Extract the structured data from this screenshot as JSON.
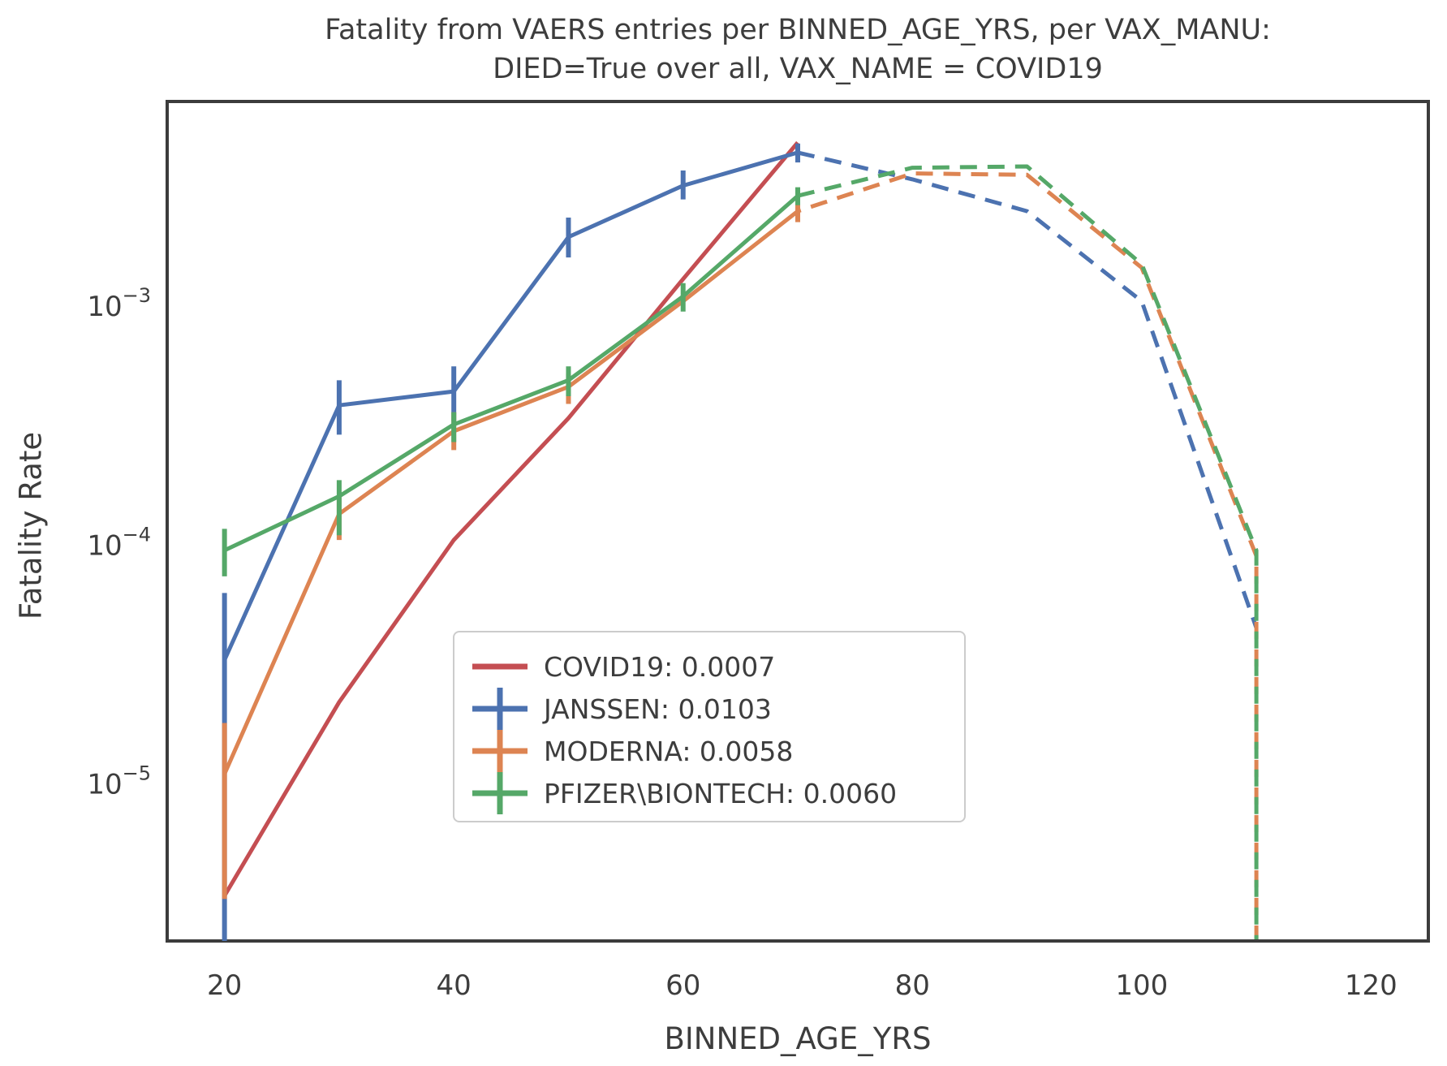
{
  "title": {
    "line1": "Fatality from VAERS entries per BINNED_AGE_YRS, per VAX_MANU:",
    "line2": "DIED=True over all, VAX_NAME = COVID19"
  },
  "axes": {
    "xlabel": "BINNED_AGE_YRS",
    "ylabel": "Fatality Rate",
    "x_ticks": [
      20,
      40,
      60,
      80,
      100,
      120
    ],
    "y_ticks": [
      {
        "base": "10",
        "exp": "−3",
        "value": 0.001
      },
      {
        "base": "10",
        "exp": "−4",
        "value": 0.0001
      },
      {
        "base": "10",
        "exp": "−5",
        "value": 1e-05
      }
    ]
  },
  "legend": {
    "items": [
      {
        "label": "COVID19: 0.0007",
        "color": "#c44e52",
        "has_bar": false
      },
      {
        "label": "JANSSEN: 0.0103",
        "color": "#4c72b0",
        "has_bar": true
      },
      {
        "label": "MODERNA: 0.0058",
        "color": "#dd8452",
        "has_bar": true
      },
      {
        "label": "PFIZER\\BIONTECH: 0.0060",
        "color": "#55a868",
        "has_bar": true
      }
    ]
  },
  "chart_data": {
    "type": "line",
    "yscale": "log",
    "title": "Fatality from VAERS entries per BINNED_AGE_YRS, per VAX_MANU: DIED=True over all, VAX_NAME = COVID19",
    "xlabel": "BINNED_AGE_YRS",
    "ylabel": "Fatality Rate",
    "xlim": [
      15,
      125
    ],
    "ylim": [
      2.2e-06,
      0.0072
    ],
    "grid": false,
    "legend_position": "lower center-left",
    "solid_until_x": 70,
    "x": [
      20,
      30,
      40,
      50,
      60,
      70,
      80,
      90,
      100,
      110
    ],
    "series": [
      {
        "name": "COVID19",
        "overall_rate": "0.0007",
        "color": "#c44e52",
        "values": [
          3.4e-06,
          2.2e-05,
          0.000105,
          0.00034,
          0.0013,
          0.00485,
          null,
          null,
          null,
          null
        ],
        "err_lo": [
          null,
          null,
          null,
          null,
          null,
          null,
          null,
          null,
          null,
          null
        ],
        "err_hi": [
          null,
          null,
          null,
          null,
          null,
          null,
          null,
          null,
          null,
          null
        ],
        "drop_at_end": false
      },
      {
        "name": "JANSSEN",
        "overall_rate": "0.0103",
        "color": "#4c72b0",
        "values": [
          3.3e-05,
          0.000385,
          0.00044,
          0.00195,
          0.0032,
          0.0044,
          0.0034,
          0.0025,
          0.00105,
          4.5e-05
        ],
        "err_lo": [
          2.2e-06,
          0.00029,
          0.00033,
          0.0016,
          0.0028,
          0.004,
          null,
          null,
          null,
          null
        ],
        "err_hi": [
          6.3e-05,
          0.00049,
          0.00056,
          0.00235,
          0.0037,
          0.0048,
          null,
          null,
          null,
          null
        ],
        "drop_at_end": false
      },
      {
        "name": "MODERNA",
        "overall_rate": "0.0058",
        "color": "#dd8452",
        "values": [
          1.1e-05,
          0.000135,
          0.0003,
          0.00046,
          0.00105,
          0.0025,
          0.0036,
          0.00355,
          0.00145,
          9e-05
        ],
        "err_lo": [
          3.3e-06,
          0.000105,
          0.00025,
          0.00039,
          null,
          0.00225,
          null,
          null,
          null,
          null
        ],
        "err_hi": [
          1.8e-05,
          0.00016,
          0.00036,
          0.00052,
          null,
          0.00275,
          null,
          null,
          null,
          null
        ],
        "drop_at_end": true
      },
      {
        "name": "PFIZER\\BIONTECH",
        "overall_rate": "0.0060",
        "color": "#55a868",
        "values": [
          9.5e-05,
          0.00016,
          0.00032,
          0.00049,
          0.0011,
          0.0029,
          0.0038,
          0.00385,
          0.0015,
          9.5e-05
        ],
        "err_lo": [
          7.4e-05,
          0.00011,
          0.00027,
          0.00042,
          0.00095,
          0.00265,
          null,
          null,
          null,
          null
        ],
        "err_hi": [
          0.000117,
          0.000187,
          0.00036,
          0.00056,
          0.00125,
          0.00315,
          null,
          null,
          null,
          null
        ],
        "drop_at_end": true
      }
    ]
  },
  "style": {
    "spine_color": "#3c3c3c",
    "text_color": "#3d3d3d",
    "line_width": 5,
    "err_width": 6
  }
}
